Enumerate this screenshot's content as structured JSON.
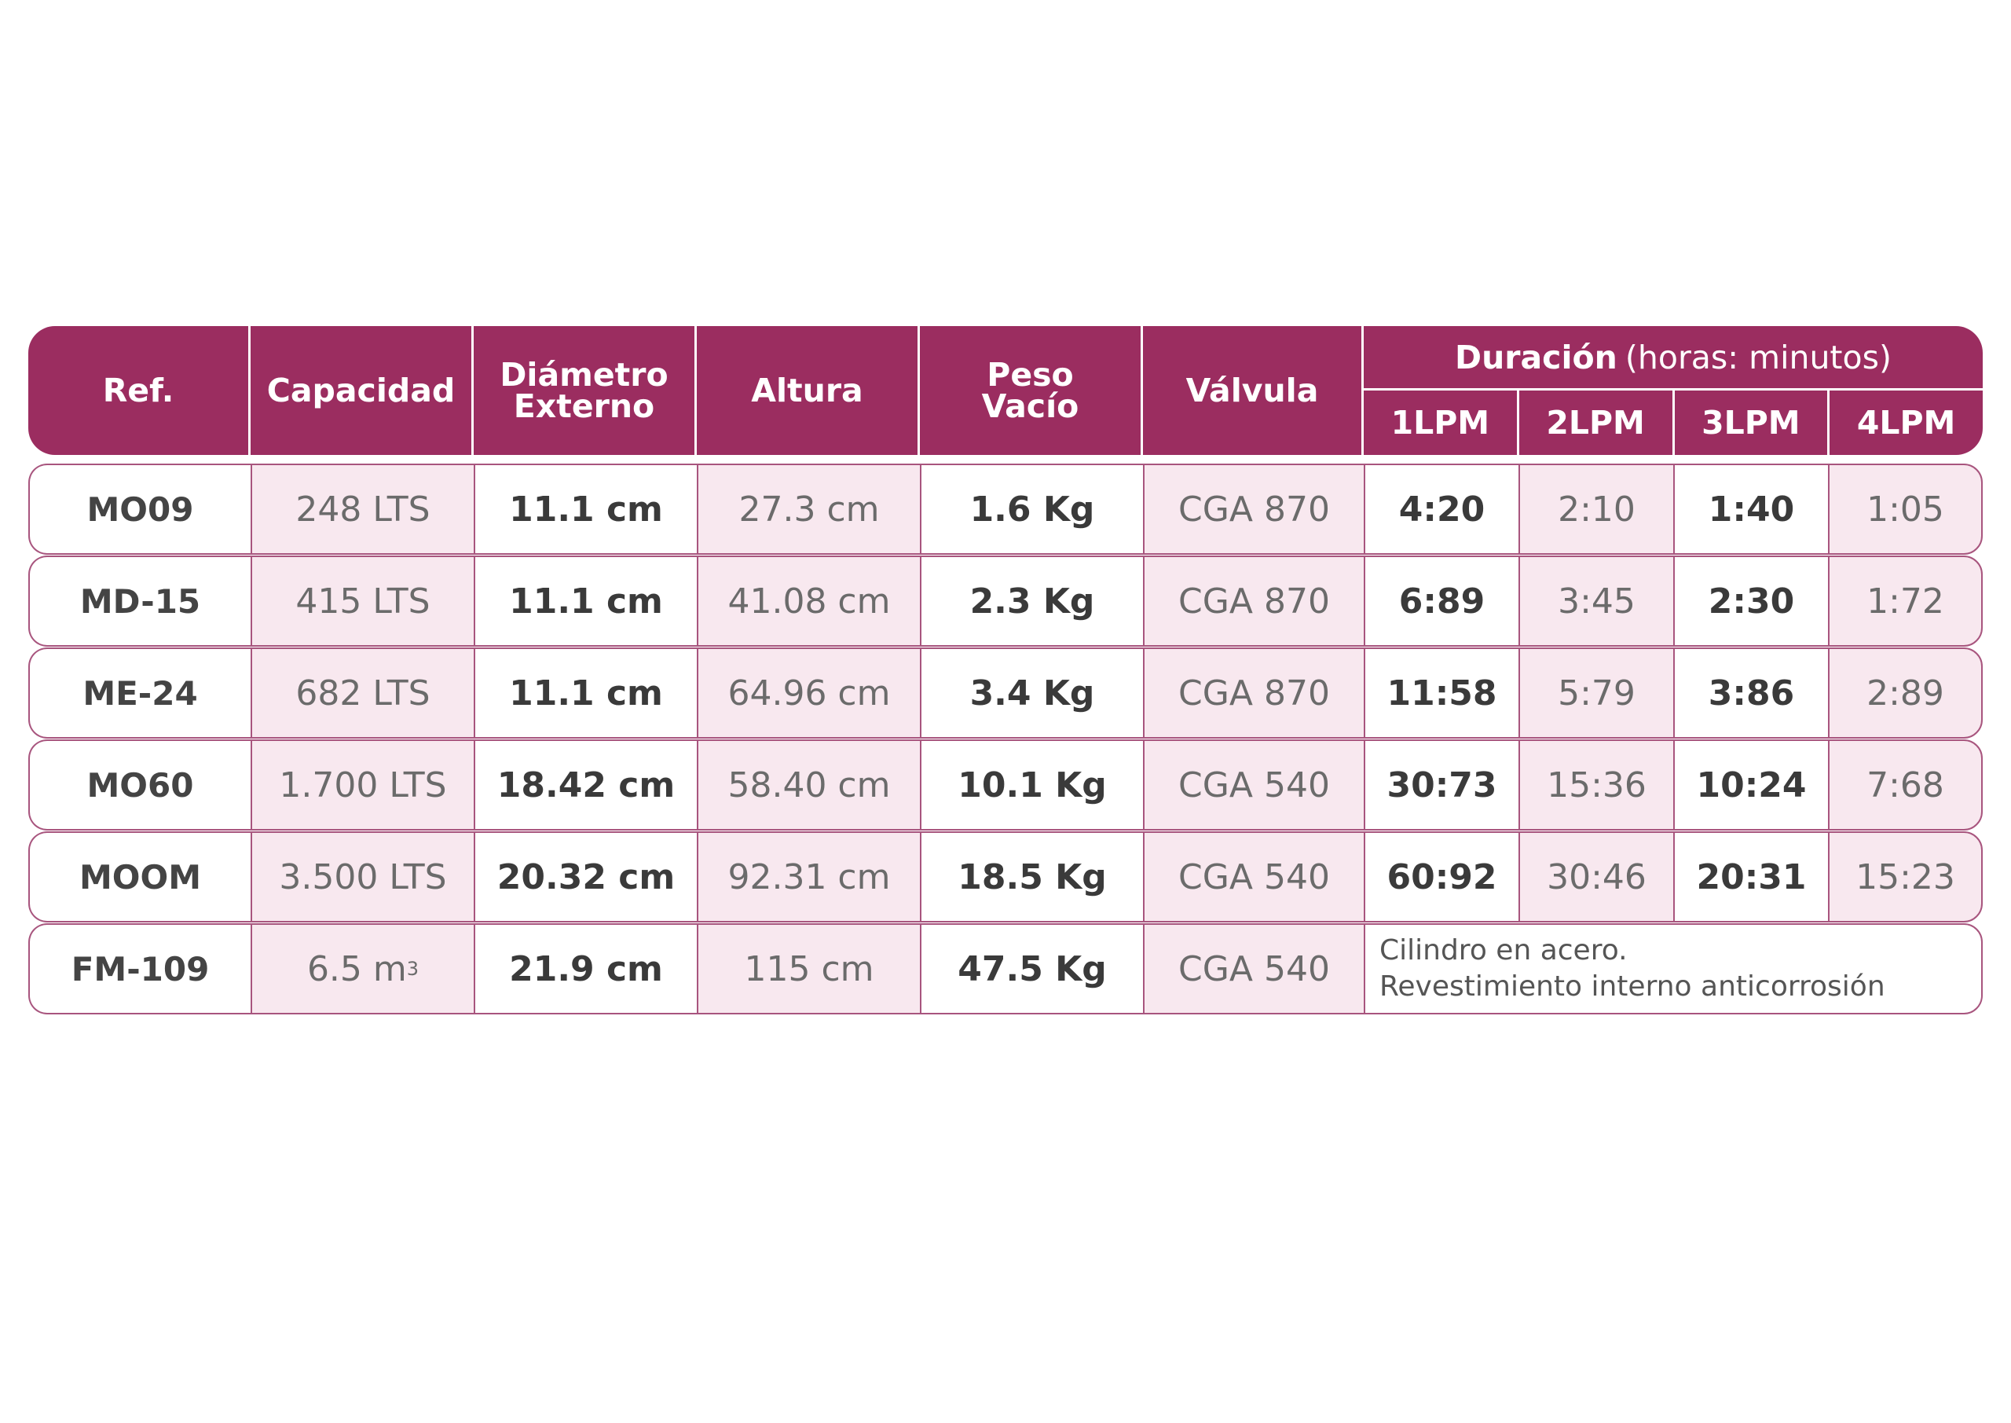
{
  "header": {
    "ref": "Ref.",
    "capacidad": "Capacidad",
    "diametro_1": "Diámetro",
    "diametro_2": "Externo",
    "altura": "Altura",
    "peso_1": "Peso",
    "peso_2": "Vacío",
    "valvula": "Válvula",
    "duracion": "Duración",
    "duracion_unit": "(horas: minutos)",
    "lpm": [
      "1LPM",
      "2LPM",
      "3LPM",
      "4LPM"
    ]
  },
  "rows": [
    {
      "ref": "MO09",
      "capacidad": "248 LTS",
      "diametro": "11.1 cm",
      "altura": "27.3 cm",
      "peso": "1.6 Kg",
      "valvula": "CGA 870",
      "d1": "4:20",
      "d2": "2:10",
      "d3": "1:40",
      "d4": "1:05"
    },
    {
      "ref": "MD-15",
      "capacidad": "415 LTS",
      "diametro": "11.1 cm",
      "altura": "41.08 cm",
      "peso": "2.3 Kg",
      "valvula": "CGA 870",
      "d1": "6:89",
      "d2": "3:45",
      "d3": "2:30",
      "d4": "1:72"
    },
    {
      "ref": "ME-24",
      "capacidad": "682 LTS",
      "diametro": "11.1 cm",
      "altura": "64.96 cm",
      "peso": "3.4 Kg",
      "valvula": "CGA 870",
      "d1": "11:58",
      "d2": "5:79",
      "d3": "3:86",
      "d4": "2:89"
    },
    {
      "ref": "MO60",
      "capacidad": "1.700 LTS",
      "diametro": "18.42 cm",
      "altura": "58.40 cm",
      "peso": "10.1 Kg",
      "valvula": "CGA 540",
      "d1": "30:73",
      "d2": "15:36",
      "d3": "10:24",
      "d4": "7:68"
    },
    {
      "ref": "MOOM",
      "capacidad": "3.500 LTS",
      "diametro": "20.32 cm",
      "altura": "92.31 cm",
      "peso": "18.5 Kg",
      "valvula": "CGA 540",
      "d1": "60:92",
      "d2": "30:46",
      "d3": "20:31",
      "d4": "15:23"
    }
  ],
  "last_row": {
    "ref": "FM-109",
    "capacidad_value": "6.5 m",
    "capacidad_sup": "3",
    "diametro": "21.9 cm",
    "altura": "115 cm",
    "peso": "47.5 Kg",
    "valvula": "CGA 540",
    "note_1": "Cilindro en acero.",
    "note_2": "Revestimiento interno anticorrosión"
  }
}
